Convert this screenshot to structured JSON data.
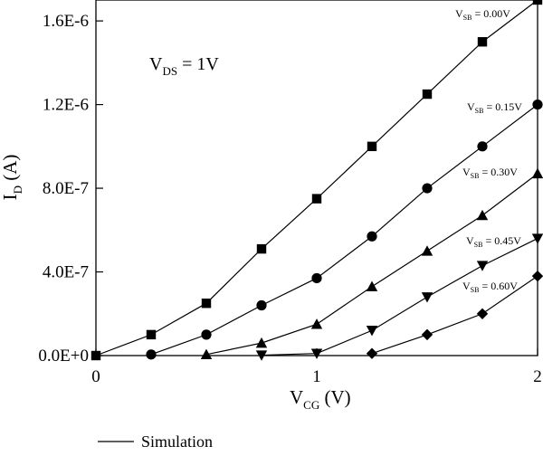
{
  "chart_data": {
    "type": "line",
    "xlabel": "V",
    "xlabel_sub": "CG",
    "xlabel_unit": " (V)",
    "ylabel": "I",
    "ylabel_sub": "D",
    "ylabel_unit": " (A)",
    "xlim": [
      0,
      2
    ],
    "ylim": [
      0,
      1.7e-06
    ],
    "x_ticks": [
      0,
      1,
      2
    ],
    "x_tick_labels": [
      "0",
      "1",
      "2"
    ],
    "y_ticks": [
      0,
      4e-07,
      8e-07,
      1.2e-06,
      1.6e-06
    ],
    "y_tick_labels": [
      "0.0E+0",
      "4.0E-7",
      "8.0E-7",
      "1.2E-6",
      "1.6E-6"
    ],
    "grid": false,
    "annotation": {
      "main": "V",
      "sub": "DS",
      "rest": " = 1V"
    },
    "legend": {
      "line_label": "Simulation",
      "placement": "bottom-left"
    },
    "series": [
      {
        "label_main": "V",
        "label_sub": "SB",
        "label_rest": " = 0.00V",
        "marker": "square",
        "x": [
          0,
          0.25,
          0.5,
          0.75,
          1.0,
          1.25,
          1.5,
          1.75,
          2.0
        ],
        "y": [
          0,
          1e-07,
          2.5e-07,
          5.1e-07,
          7.5e-07,
          1e-06,
          1.25e-06,
          1.5e-06,
          1.7e-06
        ]
      },
      {
        "label_main": "V",
        "label_sub": "SB",
        "label_rest": " = 0.15V",
        "marker": "circle",
        "x": [
          0.25,
          0.5,
          0.75,
          1.0,
          1.25,
          1.5,
          1.75,
          2.0
        ],
        "y": [
          5e-09,
          1e-07,
          2.4e-07,
          3.7e-07,
          5.7e-07,
          8e-07,
          1e-06,
          1.2e-06
        ]
      },
      {
        "label_main": "V",
        "label_sub": "SB",
        "label_rest": " = 0.30V",
        "marker": "triangle-up",
        "x": [
          0.5,
          0.75,
          1.0,
          1.25,
          1.5,
          1.75,
          2.0
        ],
        "y": [
          5e-09,
          6e-08,
          1.5e-07,
          3.3e-07,
          5e-07,
          6.7e-07,
          8.7e-07
        ]
      },
      {
        "label_main": "V",
        "label_sub": "SB",
        "label_rest": " = 0.45V",
        "marker": "triangle-down",
        "x": [
          0.75,
          1.0,
          1.25,
          1.5,
          1.75,
          2.0
        ],
        "y": [
          2e-09,
          1e-08,
          1.2e-07,
          2.8e-07,
          4.3e-07,
          5.6e-07
        ]
      },
      {
        "label_main": "V",
        "label_sub": "SB",
        "label_rest": " = 0.60V",
        "marker": "diamond",
        "x": [
          1.25,
          1.5,
          1.75,
          2.0
        ],
        "y": [
          1e-08,
          1e-07,
          2e-07,
          3.8e-07
        ]
      }
    ]
  }
}
